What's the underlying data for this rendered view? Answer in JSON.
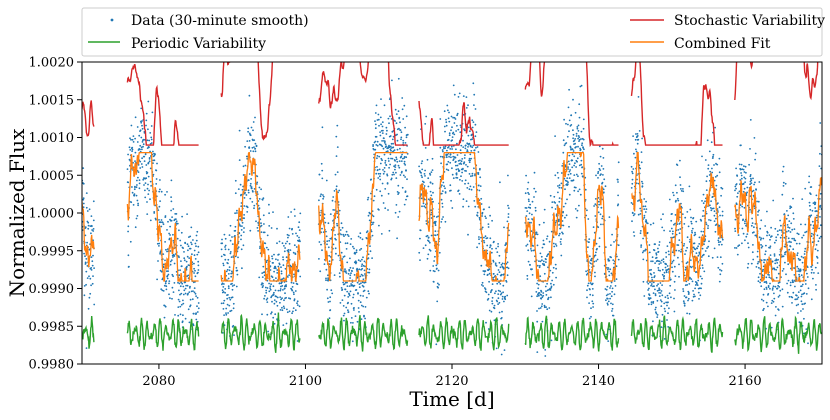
{
  "chart_data": {
    "type": "line",
    "title": "",
    "xlabel": "Time [d]",
    "ylabel": "Normalized Flux",
    "xlim": [
      2069.5,
      2170.5
    ],
    "ylim": [
      0.998,
      1.002
    ],
    "x_ticks": [
      2080,
      2100,
      2120,
      2140,
      2160
    ],
    "x_tick_labels": [
      "2080",
      "2100",
      "2120",
      "2140",
      "2160"
    ],
    "y_ticks": [
      0.998,
      0.9985,
      0.999,
      0.9995,
      1.0,
      1.0005,
      1.001,
      1.0015,
      1.002
    ],
    "y_tick_labels": [
      "0.9980",
      "0.9985",
      "0.9990",
      "0.9995",
      "1.0000",
      "1.0005",
      "1.0010",
      "1.0015",
      "1.0020"
    ],
    "grid": false,
    "legend_position": "top, above plot, two columns",
    "observation_segments": [
      [
        2069.5,
        2071.2
      ],
      [
        2075.7,
        2085.5
      ],
      [
        2088.5,
        2099.3
      ],
      [
        2101.8,
        2114.0
      ],
      [
        2115.5,
        2127.8
      ],
      [
        2130.0,
        2142.8
      ],
      [
        2144.5,
        2157.0
      ],
      [
        2158.6,
        2170.5
      ]
    ],
    "series": [
      {
        "name": "Data (30-minute smooth)",
        "kind": "scatter",
        "color": "#1f77b4",
        "center": 1.0,
        "scatter_std": 0.00035,
        "edge_dips": [
          [
            2088.8,
            0.9988
          ],
          [
            2125.8,
            0.9992
          ],
          [
            2141.0,
            0.9988
          ]
        ]
      },
      {
        "name": "Periodic Variability",
        "kind": "line",
        "color": "#2ca02c",
        "baseline": 0.9984,
        "amplitude": 0.0002,
        "min": 0.99805,
        "max": 0.99875
      },
      {
        "name": "Stochastic Variability",
        "kind": "line",
        "color": "#d62728",
        "segment_levels": [
          [
            2069.5,
            2071.2,
            1.00135
          ],
          [
            2075.7,
            2085.5,
            1.0017
          ],
          [
            2088.5,
            2099.3,
            1.00155
          ],
          [
            2101.8,
            2114.0,
            1.00145
          ],
          [
            2115.5,
            2127.8,
            1.0015
          ],
          [
            2130.0,
            2142.8,
            1.0016
          ],
          [
            2144.5,
            2157.0,
            1.00155
          ],
          [
            2158.6,
            2170.5,
            1.0015
          ]
        ],
        "min": 1.0009,
        "max": 1.002
      },
      {
        "name": "Combined Fit",
        "kind": "line",
        "color": "#ff7f0e",
        "center": 1.0,
        "min": 0.9991,
        "max": 1.0008
      }
    ]
  },
  "legend": {
    "items": [
      {
        "label": "Data (30-minute smooth)",
        "color": "#1f77b4",
        "marker": "dot"
      },
      {
        "label": "Periodic Variability",
        "color": "#2ca02c",
        "marker": "line"
      },
      {
        "label": "Stochastic Variability",
        "color": "#d62728",
        "marker": "line"
      },
      {
        "label": "Combined Fit",
        "color": "#ff7f0e",
        "marker": "line"
      }
    ]
  }
}
